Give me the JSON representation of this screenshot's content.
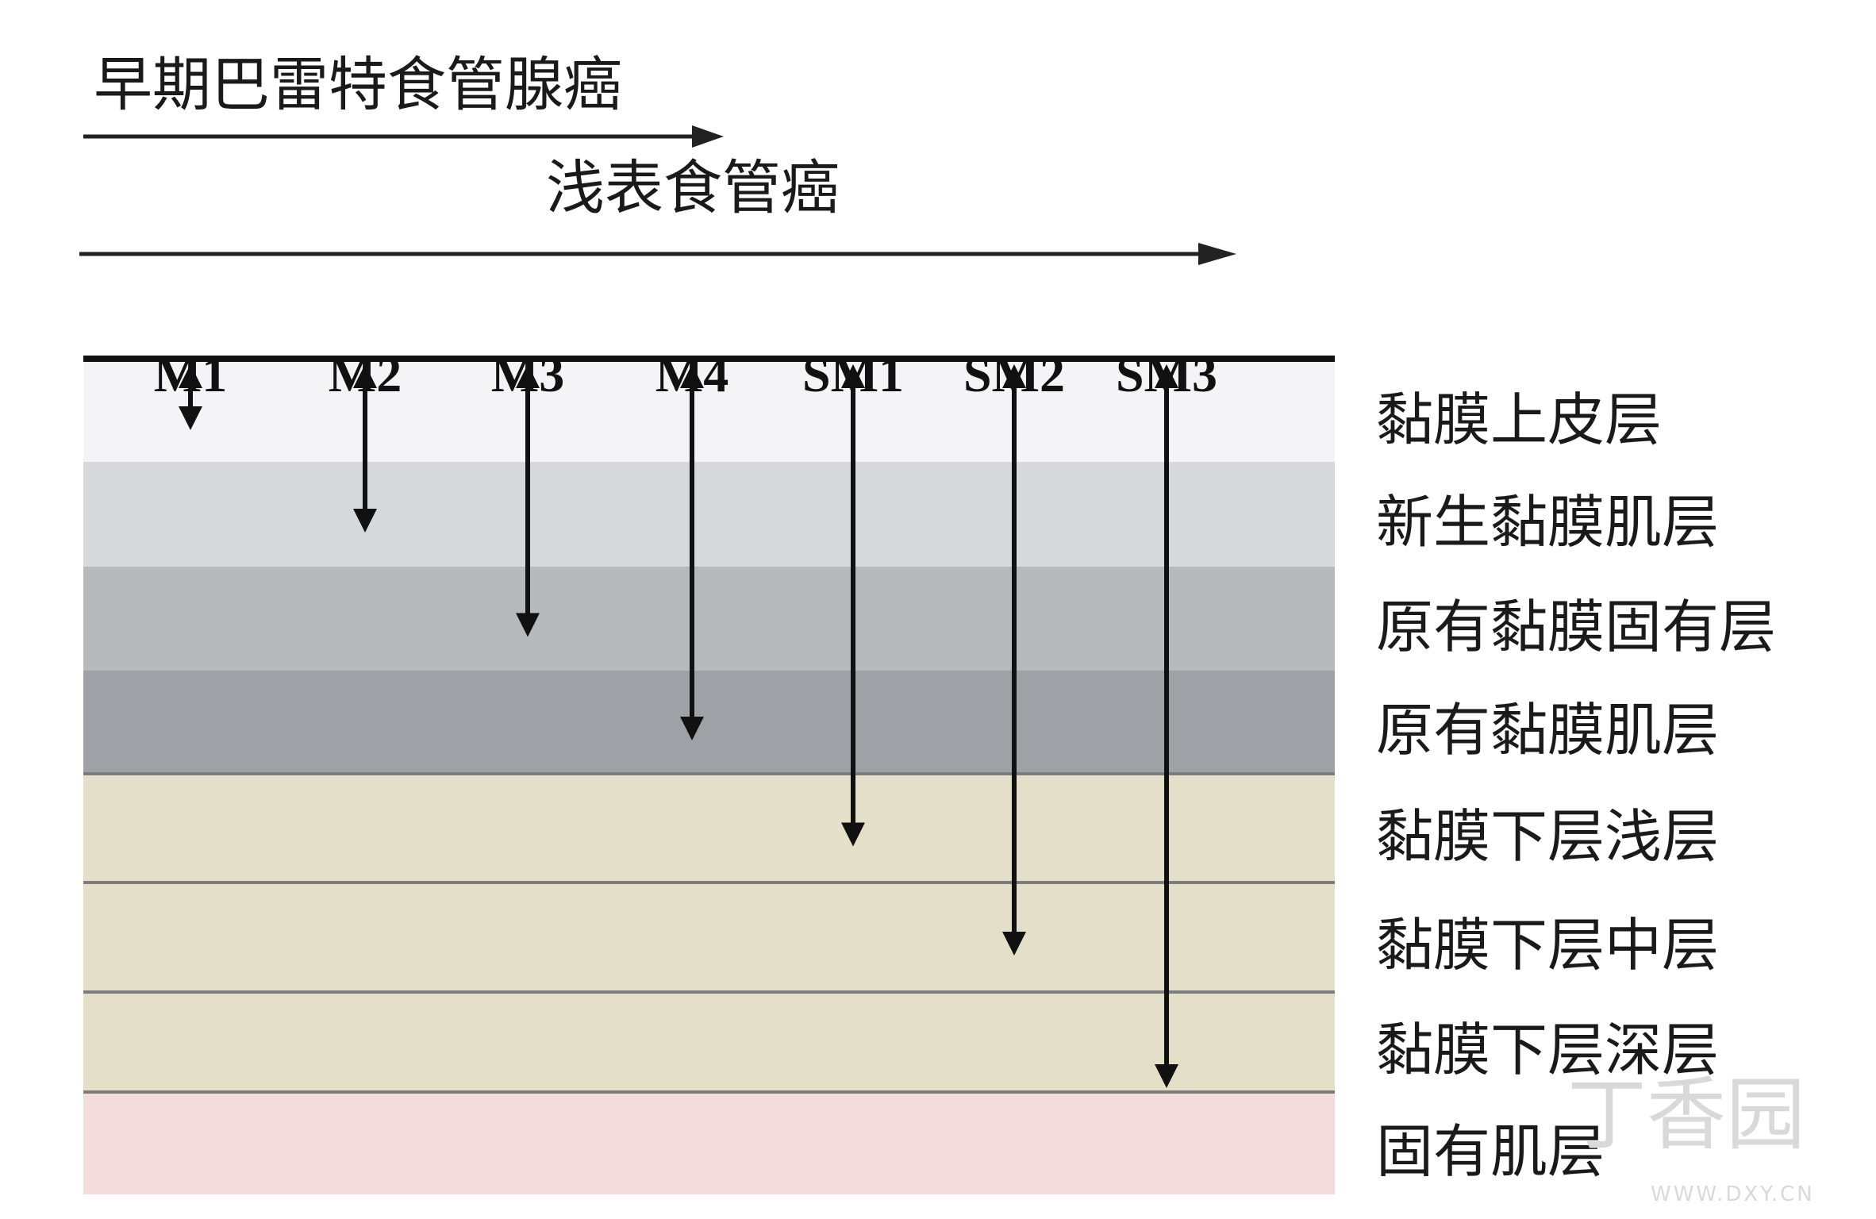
{
  "header": {
    "title_early": "早期巴雷特食管腺癌",
    "title_superficial": "浅表食管癌"
  },
  "stages": [
    "M1",
    "M2",
    "M3",
    "M4",
    "SM1",
    "SM2",
    "SM3"
  ],
  "layers": [
    {
      "label": "黏膜上皮层",
      "color": "#f4f4f6"
    },
    {
      "label": "新生黏膜肌层",
      "color": "#d7d8db"
    },
    {
      "label": "原有黏膜固有层",
      "color": "#b8b9bd"
    },
    {
      "label": "原有黏膜肌层",
      "color": "#9fa1a6"
    },
    {
      "label": "黏膜下层浅层",
      "color": "#e4dfc9"
    },
    {
      "label": "黏膜下层中层",
      "color": "#e4dfc9"
    },
    {
      "label": "黏膜下层深层",
      "color": "#e4dfc9"
    },
    {
      "label": "固有肌层",
      "color": "#f3dcdc"
    }
  ],
  "depth_map": [
    1,
    2,
    3,
    4,
    5,
    6,
    7
  ],
  "watermark": {
    "brand": "丁香园",
    "site": "WWW.DXY.CN"
  }
}
